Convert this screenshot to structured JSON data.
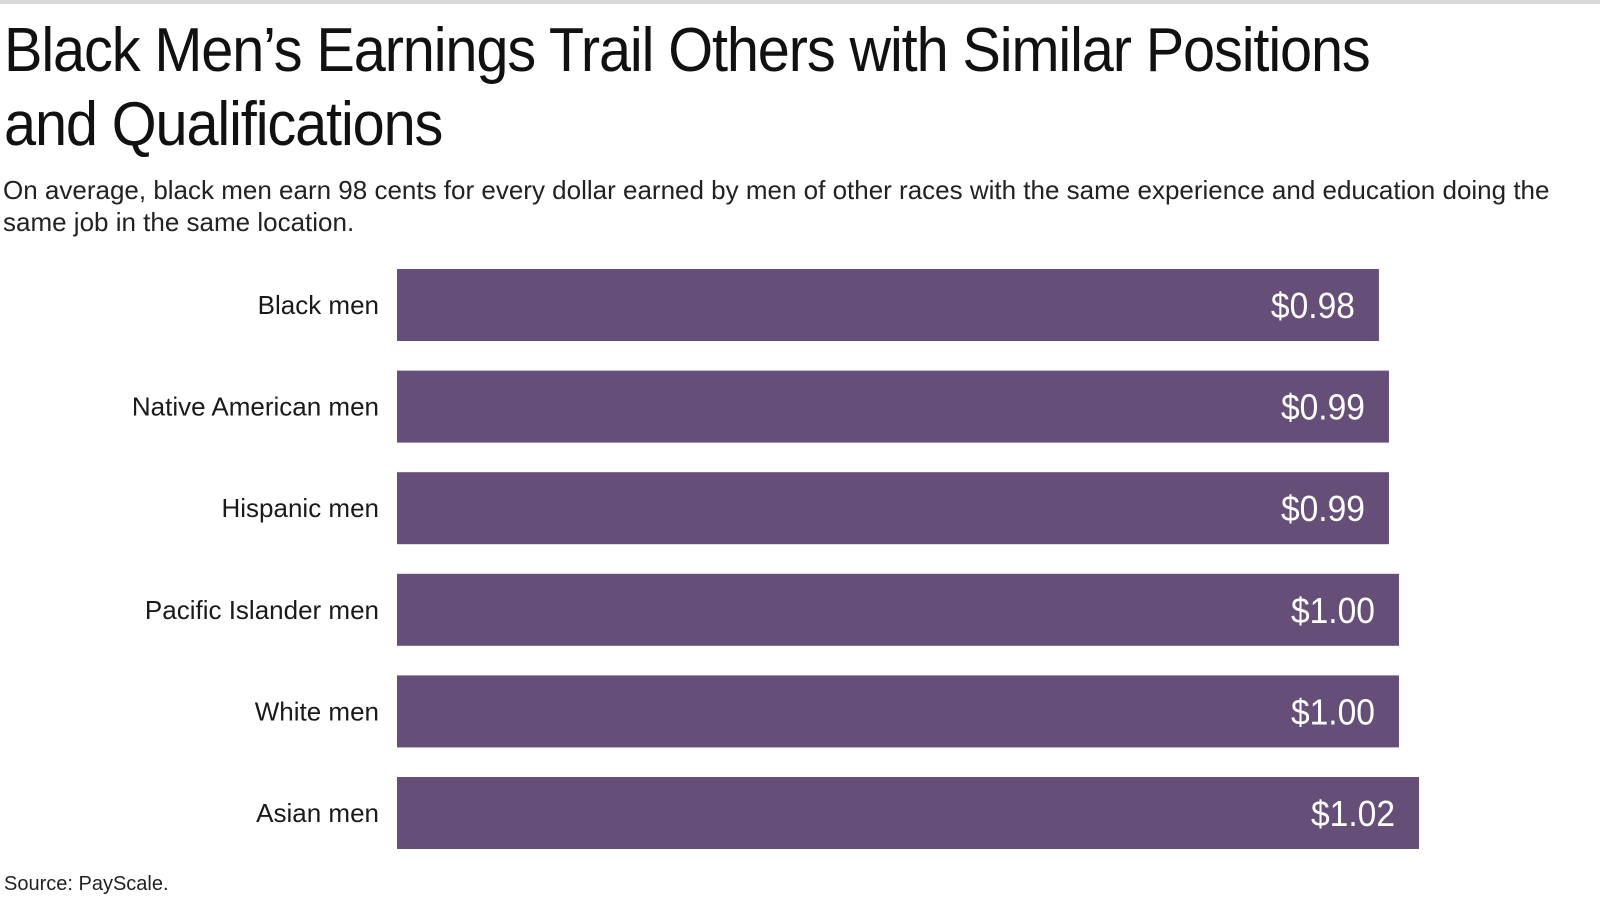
{
  "chart_data": {
    "type": "bar",
    "orientation": "horizontal",
    "title": "Black Men’s Earnings Trail Others with Similar Positions and Qualifications",
    "subtitle": "On average, black men earn 98 cents for every dollar earned by men of other races with the same experience and education doing the same job in the same location.",
    "categories": [
      "Black men",
      "Native American men",
      "Hispanic men",
      "Pacific Islander men",
      "White men",
      "Asian men"
    ],
    "values": [
      0.98,
      0.99,
      0.99,
      1.0,
      1.0,
      1.02
    ],
    "value_labels": [
      "$0.98",
      "$0.99",
      "$0.99",
      "$1.00",
      "$1.00",
      "$1.02"
    ],
    "xlim": [
      0,
      1.02
    ],
    "grid": false,
    "legend": "none",
    "bar_color": "#654e78",
    "source": "Source: PayScale."
  }
}
